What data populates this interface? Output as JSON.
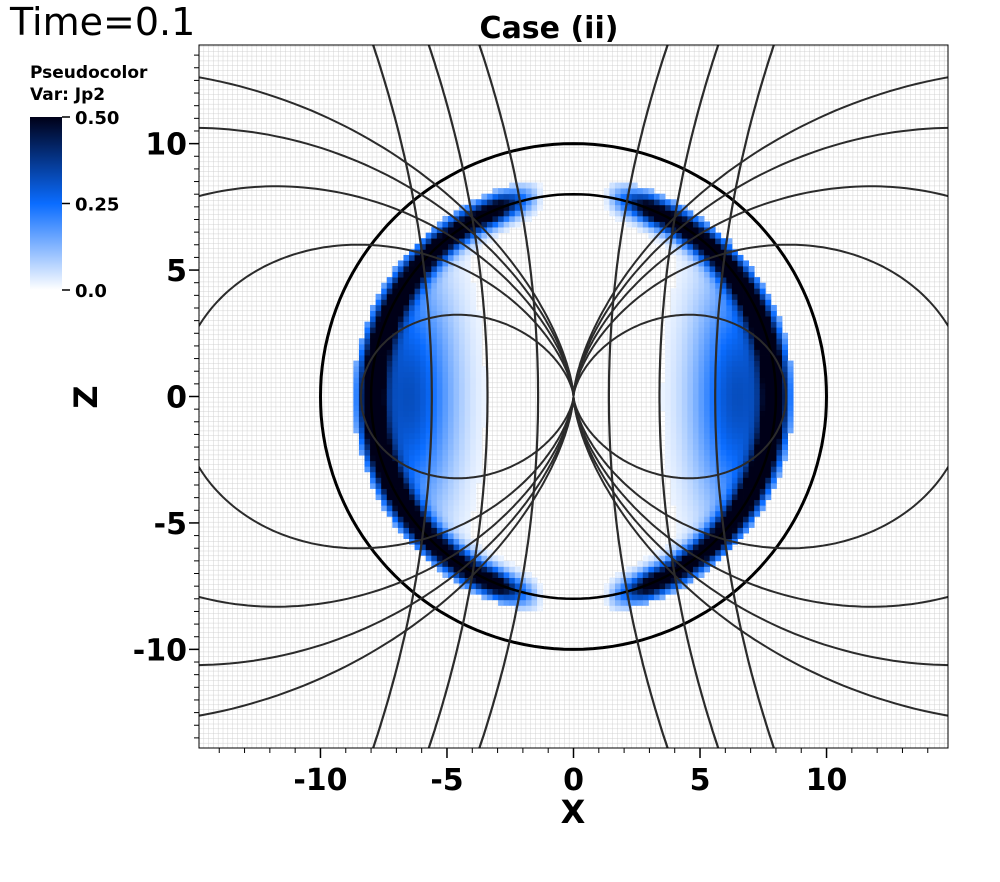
{
  "time_label": "Time=0.1",
  "chart_data": {
    "type": "heatmap",
    "title": "Case (ii)",
    "xlabel": "X",
    "ylabel": "Z",
    "xlim": [
      -14.8,
      14.8
    ],
    "ylim": [
      -13.9,
      13.9
    ],
    "xticks": [
      -10,
      -5,
      0,
      5,
      10
    ],
    "xtick_labels": [
      "-10",
      "-5",
      "0",
      "5",
      "10"
    ],
    "yticks": [
      -10,
      -5,
      0,
      5,
      10
    ],
    "ytick_labels": [
      "-10",
      "-5",
      "0",
      "5",
      "10"
    ],
    "legend": {
      "title_line1": "Pseudocolor",
      "title_line2": "Var: Jp2",
      "variable": "Jp2",
      "min": 0.0,
      "max": 0.5,
      "ticks": [
        0.5,
        0.25,
        0.0
      ],
      "tick_labels": [
        "0.50",
        "0.25",
        "0.0"
      ],
      "colors": [
        "#ffffff",
        "#0a6cff",
        "#000018"
      ],
      "placement": "top-left"
    },
    "field": {
      "description_values": "Jp2 concentrated in spherical shell, peak at radius ~8, secondary lobes at radius ~6.5 near equator",
      "shell_radius": 8.0,
      "shell_width": 0.55,
      "shell_peak": 0.6,
      "lobe_center_x": 6.5,
      "lobe_peak": 0.32,
      "outer_radius": 8.7,
      "inner_gap_x": 1.2
    },
    "contours": {
      "grid_boundary_outer_radius": 10.0,
      "grid_boundary_inner_radius": 8.0,
      "field_line_levels": [
        0.35,
        0.65,
        0.9,
        1.15,
        1.4
      ]
    },
    "colors": {
      "grid": "#cfcfcf",
      "contour": "#2b2b2b",
      "frame": "#000000"
    }
  }
}
